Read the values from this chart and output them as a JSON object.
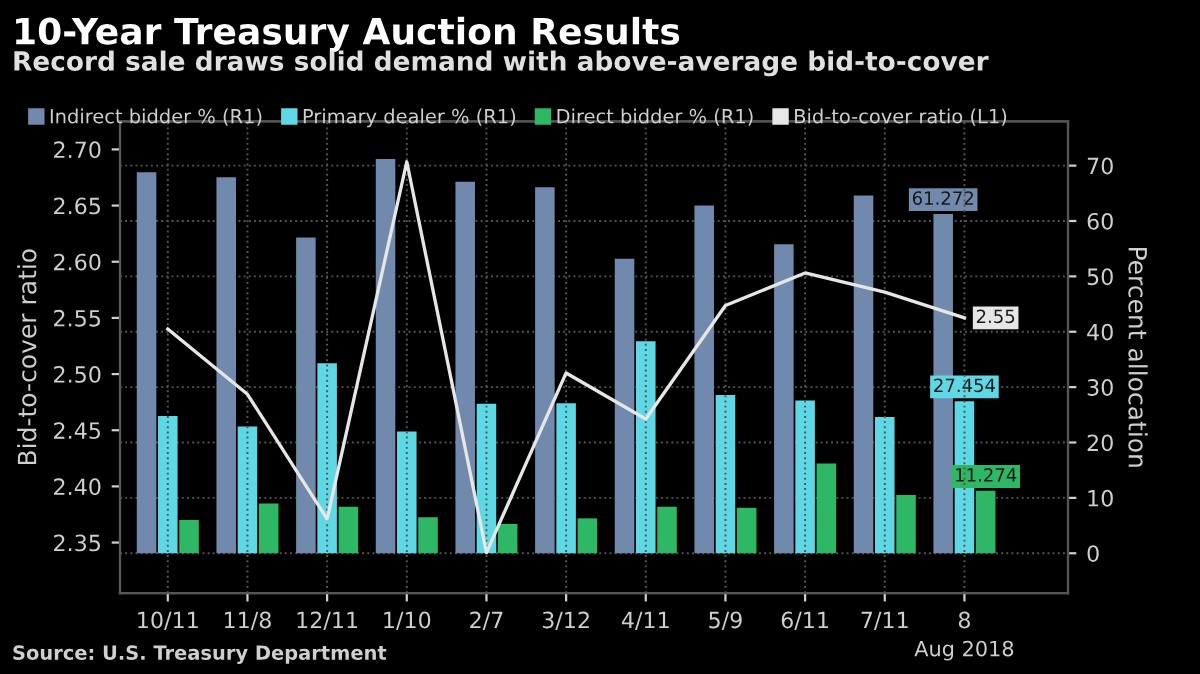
{
  "chart_data": {
    "type": "bar",
    "title": "10-Year Treasury Auction Results",
    "subtitle": "Record sale draws solid demand with above-average bid-to-cover",
    "ylabel": "Bid-to-cover ratio",
    "y2label": "Percent allocation",
    "categories": [
      "10/11",
      "11/8",
      "12/11",
      "1/10",
      "2/7",
      "3/12",
      "4/11",
      "5/9",
      "6/11",
      "7/11",
      "8"
    ],
    "series": [
      {
        "name": "Indirect bidder % (R1)",
        "axis": "y2",
        "color": "#7089ad",
        "values": [
          68.8,
          67.9,
          57.0,
          71.2,
          67.1,
          66.1,
          53.2,
          62.8,
          55.8,
          64.6,
          61.272
        ],
        "value_labels": [
          null,
          null,
          null,
          null,
          null,
          null,
          null,
          null,
          null,
          null,
          "61.272"
        ]
      },
      {
        "name": "Primary dealer % (R1)",
        "axis": "y2",
        "color": "#5fd8e6",
        "values": [
          24.8,
          22.9,
          34.3,
          22.0,
          27.0,
          27.1,
          38.3,
          28.6,
          27.6,
          24.6,
          27.454
        ],
        "value_labels": [
          null,
          null,
          null,
          null,
          null,
          null,
          null,
          null,
          null,
          null,
          "27.454"
        ]
      },
      {
        "name": "Direct bidder % (R1)",
        "axis": "y2",
        "color": "#2eb865",
        "values": [
          6.0,
          9.0,
          8.4,
          6.5,
          5.3,
          6.3,
          8.4,
          8.2,
          16.2,
          10.5,
          11.274
        ],
        "value_labels": [
          null,
          null,
          null,
          null,
          null,
          null,
          null,
          null,
          null,
          null,
          "11.274"
        ]
      },
      {
        "name": "Bid-to-cover ratio (L1)",
        "type": "line",
        "axis": "y",
        "color": "#e6e6e6",
        "values": [
          2.54,
          2.482,
          2.371,
          2.689,
          2.341,
          2.501,
          2.46,
          2.561,
          2.59,
          2.573,
          2.55
        ],
        "value_labels": [
          null,
          null,
          null,
          null,
          null,
          null,
          null,
          null,
          null,
          null,
          "2.55"
        ]
      }
    ],
    "ylim": [
      2.305,
      2.725
    ],
    "yticks": [
      2.35,
      {
        "value": 2.4,
        "label": "2.40"
      },
      2.45,
      {
        "value": 2.5,
        "label": "2.50"
      },
      2.55,
      {
        "value": 2.6,
        "label": "2.60"
      },
      2.65,
      {
        "value": 2.7,
        "label": "2.70"
      }
    ],
    "y2lim": [
      -7.2,
      78
    ],
    "y2ticks": [
      0,
      10,
      20,
      30,
      40,
      50,
      60,
      70
    ],
    "grid": true,
    "legend": "top",
    "marker": "none",
    "line_style": "solid",
    "annotations": [
      "Aug 2018",
      "Source: U.S. Treasury Department"
    ]
  }
}
